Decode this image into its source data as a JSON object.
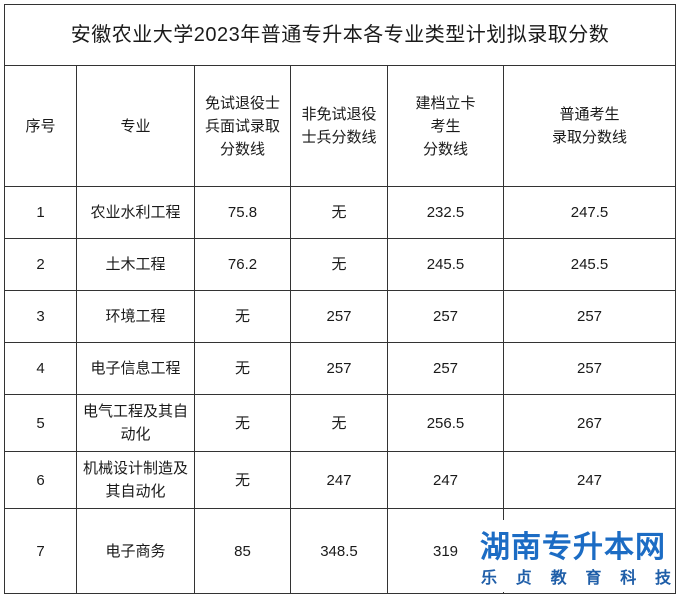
{
  "title": "安徽农业大学2023年普通专升本各专业类型计划拟录取分数",
  "headers": {
    "seq": "序号",
    "major": "专业",
    "exempt_line1": "免试退役士",
    "exempt_line2": "兵面试录取",
    "exempt_line3": "分数线",
    "nonexempt_line1": "非免试退役",
    "nonexempt_line2": "士兵分数线",
    "poverty_line1": "建档立卡",
    "poverty_line2": "考生",
    "poverty_line3": "分数线",
    "general_line1": "普通考生",
    "general_line2": "录取分数线"
  },
  "rows": [
    {
      "seq": "1",
      "major_line1": "农业水利工程",
      "major_line2": "",
      "exempt": "75.8",
      "nonexempt": "无",
      "poverty": "232.5",
      "general": "247.5"
    },
    {
      "seq": "2",
      "major_line1": "土木工程",
      "major_line2": "",
      "exempt": "76.2",
      "nonexempt": "无",
      "poverty": "245.5",
      "general": "245.5"
    },
    {
      "seq": "3",
      "major_line1": "环境工程",
      "major_line2": "",
      "exempt": "无",
      "nonexempt": "257",
      "poverty": "257",
      "general": "257"
    },
    {
      "seq": "4",
      "major_line1": "电子信息工程",
      "major_line2": "",
      "exempt": "无",
      "nonexempt": "257",
      "poverty": "257",
      "general": "257"
    },
    {
      "seq": "5",
      "major_line1": "电气工程及其自",
      "major_line2": "动化",
      "exempt": "无",
      "nonexempt": "无",
      "poverty": "256.5",
      "general": "267"
    },
    {
      "seq": "6",
      "major_line1": "机械设计制造及",
      "major_line2": "其自动化",
      "exempt": "无",
      "nonexempt": "247",
      "poverty": "247",
      "general": "247"
    },
    {
      "seq": "7",
      "major_line1": "电子商务",
      "major_line2": "",
      "exempt": "85",
      "nonexempt": "348.5",
      "poverty": "319",
      "general": ""
    }
  ],
  "watermark": {
    "title": "湖南专升本网",
    "subtitle": [
      "乐",
      "贞",
      "教",
      "育",
      "科",
      "技"
    ]
  }
}
